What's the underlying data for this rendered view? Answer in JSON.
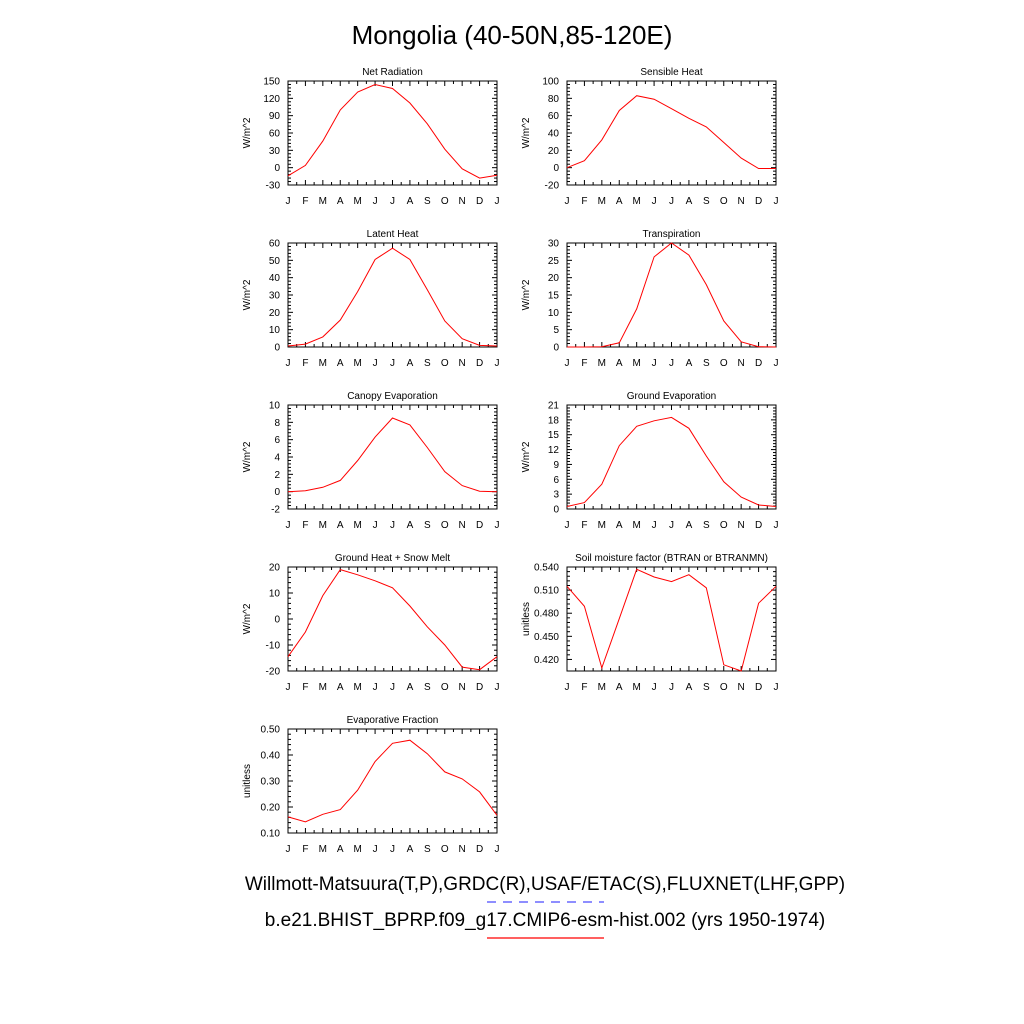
{
  "page": {
    "title": "Mongolia (40-50N,85-120E)",
    "legend_obs": "Willmott-Matsuura(T,P),GRDC(R),USAF/ETAC(S),FLUXNET(LHF,GPP)",
    "legend_model": "b.e21.BHIST_BPRP.f09_g17.CMIP6-esm-hist.002 (yrs 1950-1974)",
    "colors": {
      "model": "#ff0000",
      "obs": "#4b4bff",
      "axis": "#000000"
    }
  },
  "chart_data": [
    {
      "type": "line",
      "title": "Net Radiation",
      "ylabel": "W/m^2",
      "x": [
        "J",
        "F",
        "M",
        "A",
        "M",
        "J",
        "J",
        "A",
        "S",
        "O",
        "N",
        "D",
        "J"
      ],
      "ylim": [
        -30,
        150
      ],
      "yticks": [
        "-30",
        "0",
        "30",
        "60",
        "90",
        "120",
        "150"
      ],
      "series": [
        {
          "values": [
            -14,
            4,
            46,
            100,
            131,
            144,
            137,
            112,
            76,
            32,
            -2,
            -18,
            -13
          ]
        }
      ]
    },
    {
      "type": "line",
      "title": "Sensible Heat",
      "ylabel": "W/m^2",
      "x": [
        "J",
        "F",
        "M",
        "A",
        "M",
        "J",
        "J",
        "A",
        "S",
        "O",
        "N",
        "D",
        "J"
      ],
      "ylim": [
        -20,
        100
      ],
      "yticks": [
        "-20",
        "0",
        "20",
        "40",
        "60",
        "80",
        "100"
      ],
      "series": [
        {
          "values": [
            0,
            8,
            32,
            66,
            83,
            79,
            68,
            57,
            47,
            29,
            11,
            -1,
            -1
          ]
        }
      ]
    },
    {
      "type": "line",
      "title": "Latent Heat",
      "ylabel": "W/m^2",
      "x": [
        "J",
        "F",
        "M",
        "A",
        "M",
        "J",
        "J",
        "A",
        "S",
        "O",
        "N",
        "D",
        "J"
      ],
      "ylim": [
        0,
        60
      ],
      "yticks": [
        "0",
        "10",
        "20",
        "30",
        "40",
        "50",
        "60"
      ],
      "series": [
        {
          "values": [
            0.6,
            1.7,
            5.8,
            15.6,
            32,
            50.5,
            57,
            50.5,
            33,
            15,
            4.8,
            0.9,
            0.6
          ]
        }
      ]
    },
    {
      "type": "line",
      "title": "Transpiration",
      "ylabel": "W/m^2",
      "x": [
        "J",
        "F",
        "M",
        "A",
        "M",
        "J",
        "J",
        "A",
        "S",
        "O",
        "N",
        "D",
        "J"
      ],
      "ylim": [
        0,
        30
      ],
      "yticks": [
        "0",
        "5",
        "10",
        "15",
        "20",
        "25",
        "30"
      ],
      "series": [
        {
          "values": [
            0,
            0,
            0.1,
            1.2,
            11,
            26,
            30,
            26.5,
            18,
            7.5,
            1.5,
            0.1,
            0
          ]
        }
      ]
    },
    {
      "type": "line",
      "title": "Canopy Evaporation",
      "ylabel": "W/m^2",
      "x": [
        "J",
        "F",
        "M",
        "A",
        "M",
        "J",
        "J",
        "A",
        "S",
        "O",
        "N",
        "D",
        "J"
      ],
      "ylim": [
        -2,
        10
      ],
      "yticks": [
        "-2",
        "0",
        "2",
        "4",
        "6",
        "8",
        "10"
      ],
      "series": [
        {
          "values": [
            0,
            0.1,
            0.5,
            1.3,
            3.6,
            6.3,
            8.5,
            7.7,
            5.1,
            2.3,
            0.7,
            0.05,
            0
          ]
        }
      ]
    },
    {
      "type": "line",
      "title": "Ground Evaporation",
      "ylabel": "W/m^2",
      "x": [
        "J",
        "F",
        "M",
        "A",
        "M",
        "J",
        "J",
        "A",
        "S",
        "O",
        "N",
        "D",
        "J"
      ],
      "ylim": [
        0,
        21
      ],
      "yticks": [
        "0",
        "3",
        "6",
        "9",
        "12",
        "15",
        "18",
        "21"
      ],
      "series": [
        {
          "values": [
            0.5,
            1.3,
            5,
            12.8,
            16.7,
            17.8,
            18.5,
            16.3,
            10.7,
            5.5,
            2.4,
            0.8,
            0.5
          ]
        }
      ]
    },
    {
      "type": "line",
      "title": "Ground Heat + Snow Melt",
      "ylabel": "W/m^2",
      "x": [
        "J",
        "F",
        "M",
        "A",
        "M",
        "J",
        "J",
        "A",
        "S",
        "O",
        "N",
        "D",
        "J"
      ],
      "ylim": [
        -20,
        20
      ],
      "yticks": [
        "-20",
        "-10",
        "0",
        "10",
        "20"
      ],
      "series": [
        {
          "values": [
            -14.5,
            -5,
            9,
            19,
            17,
            14.7,
            12,
            5,
            -3,
            -10,
            -18.5,
            -19.5,
            -14.5
          ]
        }
      ]
    },
    {
      "type": "line",
      "title": "Soil moisture factor (BTRAN or BTRANMN)",
      "ylabel": "unitless",
      "x": [
        "J",
        "F",
        "M",
        "A",
        "M",
        "J",
        "J",
        "A",
        "S",
        "O",
        "N",
        "D",
        "J"
      ],
      "ylim": [
        0.405,
        0.54
      ],
      "yticks": [
        "0.420",
        "0.450",
        "0.480",
        "0.510",
        "0.540"
      ],
      "ytick_values": [
        0.42,
        0.45,
        0.48,
        0.51,
        0.54
      ],
      "series": [
        {
          "values": [
            0.515,
            0.489,
            0.409,
            0.473,
            0.537,
            0.527,
            0.521,
            0.53,
            0.513,
            0.413,
            0.405,
            0.493,
            0.515
          ]
        }
      ]
    },
    {
      "type": "line",
      "title": "Evaporative Fraction",
      "ylabel": "unitless",
      "x": [
        "J",
        "F",
        "M",
        "A",
        "M",
        "J",
        "J",
        "A",
        "S",
        "O",
        "N",
        "D",
        "J"
      ],
      "ylim": [
        0.1,
        0.5
      ],
      "yticks": [
        "0.10",
        "0.20",
        "0.30",
        "0.40",
        "0.50"
      ],
      "ytick_values": [
        0.1,
        0.2,
        0.3,
        0.4,
        0.5
      ],
      "series": [
        {
          "values": [
            0.162,
            0.143,
            0.172,
            0.19,
            0.265,
            0.375,
            0.445,
            0.457,
            0.405,
            0.335,
            0.308,
            0.258,
            0.168
          ]
        }
      ]
    }
  ]
}
